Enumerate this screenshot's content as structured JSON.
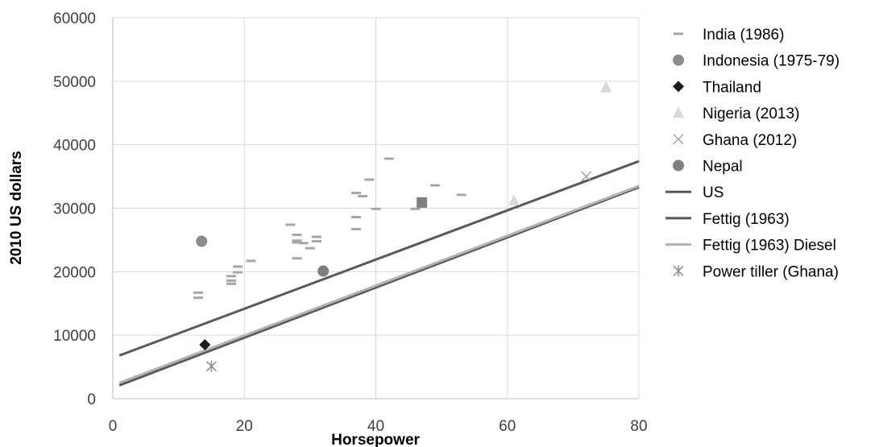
{
  "chart_data": {
    "type": "scatter",
    "title": "",
    "xlabel": "Horsepower",
    "ylabel": "2010 US dollars",
    "xlim": [
      0,
      80
    ],
    "ylim": [
      0,
      60000
    ],
    "xticks": [
      0,
      20,
      40,
      60,
      80
    ],
    "yticks": [
      0,
      10000,
      20000,
      30000,
      40000,
      50000,
      60000
    ],
    "x_tick_labels": [
      "0",
      "20",
      "40",
      "60",
      "80"
    ],
    "y_tick_labels": [
      "0",
      "10000",
      "20000",
      "30000",
      "40000",
      "50000",
      "60000"
    ],
    "grid": true,
    "legend_position": "right",
    "series": [
      {
        "name": "India (1986)",
        "kind": "scatter",
        "marker": "dash",
        "color": "#a6a6a6",
        "points": [
          [
            13,
            16700
          ],
          [
            13,
            15900
          ],
          [
            18,
            19300
          ],
          [
            18,
            18600
          ],
          [
            18,
            18100
          ],
          [
            19,
            20800
          ],
          [
            19,
            19900
          ],
          [
            21,
            21700
          ],
          [
            27,
            27400
          ],
          [
            28,
            25800
          ],
          [
            28,
            24900
          ],
          [
            28,
            24600
          ],
          [
            28,
            22100
          ],
          [
            29,
            24500
          ],
          [
            30,
            23700
          ],
          [
            31,
            25500
          ],
          [
            31,
            24800
          ],
          [
            37,
            32400
          ],
          [
            37,
            28600
          ],
          [
            37,
            26700
          ],
          [
            38,
            31900
          ],
          [
            39,
            34500
          ],
          [
            40,
            29900
          ],
          [
            42,
            37800
          ],
          [
            46,
            29900
          ],
          [
            49,
            33600
          ],
          [
            53,
            32100
          ]
        ]
      },
      {
        "name": "Indonesia (1975-79)",
        "kind": "scatter",
        "marker": "circle",
        "color": "#8c8c8c",
        "points": [
          [
            13.5,
            24800
          ]
        ]
      },
      {
        "name": "Thailand",
        "kind": "scatter",
        "marker": "diamond",
        "color": "#1a1a1a",
        "points": [
          [
            14,
            8500
          ]
        ]
      },
      {
        "name": "Nigeria (2013)",
        "kind": "scatter",
        "marker": "triangle",
        "color": "#d9d9d9",
        "points": [
          [
            61,
            31200
          ],
          [
            75,
            49000
          ]
        ]
      },
      {
        "name": "Ghana (2012)",
        "kind": "scatter",
        "marker": "x",
        "color": "#a6a6a6",
        "points": [
          [
            72,
            35000
          ]
        ]
      },
      {
        "name": "Nepal",
        "kind": "scatter",
        "marker": "circle",
        "color": "#7f7f7f",
        "points": [
          [
            32,
            20100
          ]
        ]
      },
      {
        "name": "US",
        "kind": "line",
        "color": "#595959",
        "points": [
          [
            1,
            6800
          ],
          [
            80,
            37400
          ]
        ]
      },
      {
        "name": "Fettig (1963)",
        "kind": "line",
        "color": "#595959",
        "points": [
          [
            1,
            2100
          ],
          [
            80,
            33300
          ]
        ]
      },
      {
        "name": "Fettig (1963) Diesel",
        "kind": "line",
        "color": "#b3b3b3",
        "points": [
          [
            1,
            2500
          ],
          [
            80,
            33500
          ]
        ]
      },
      {
        "name": "Power tiller (Ghana)",
        "kind": "scatter",
        "marker": "asterisk",
        "color": "#8c8c8c",
        "points": [
          [
            15,
            5100
          ]
        ]
      }
    ],
    "unlabeled_points": [
      {
        "marker": "square",
        "color": "#808080",
        "points": [
          [
            47,
            30900
          ]
        ]
      }
    ]
  }
}
